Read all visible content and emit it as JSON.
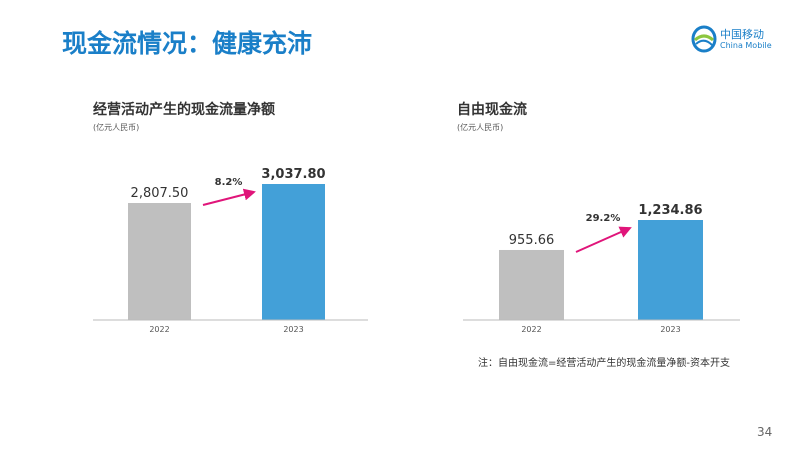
{
  "title": "现金流情况：健康充沛",
  "logo": {
    "cn": "中国移动",
    "en": "China Mobile"
  },
  "note": "注：自由现金流=经营活动产生的现金流量净额-资本开支",
  "page_number": "34",
  "colors": {
    "bar_prev": "#bfbfbf",
    "bar_curr": "#43a0d8",
    "arrow": "#e0157a",
    "title": "#1a7fc8"
  },
  "chart_data": [
    {
      "type": "bar",
      "title": "经营活动产生的现金流量净额",
      "unit": "(亿元人民币)",
      "categories": [
        "2022",
        "2023"
      ],
      "values": [
        2807.5,
        3037.8
      ],
      "labels": [
        "2,807.50",
        "3,037.80"
      ],
      "growth": "8.2%",
      "ylim": [
        1389,
        3037.8
      ]
    },
    {
      "type": "bar",
      "title": "自由现金流",
      "unit": "(亿元人民币)",
      "categories": [
        "2022",
        "2023"
      ],
      "values": [
        955.66,
        1234.86
      ],
      "labels": [
        "955.66",
        "1,234.86"
      ],
      "growth": "29.2%",
      "ylim": [
        304,
        1234.86
      ]
    }
  ]
}
